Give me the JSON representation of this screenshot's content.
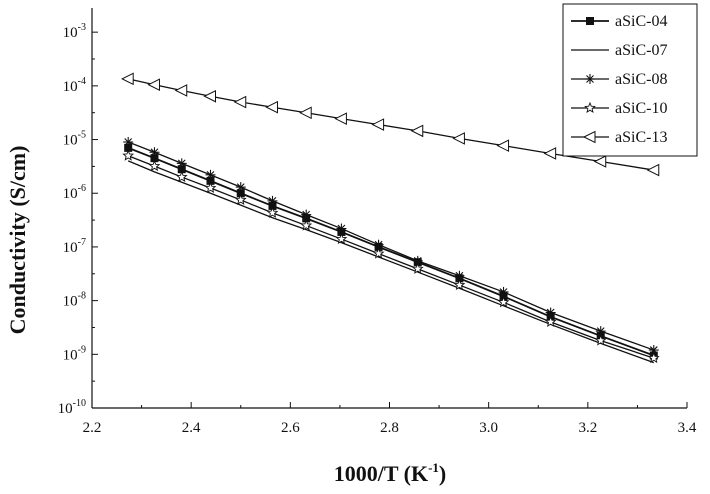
{
  "chart_data": {
    "type": "line",
    "title": "",
    "xlabel": "1000/T (K",
    "xlabel_sup": "-1",
    "xlabel_suffix": ")",
    "ylabel": "Conductivity (S/cm)",
    "xlim": [
      2.2,
      3.4
    ],
    "ylim_log10": [
      -10,
      -2.55
    ],
    "y_scale": "log",
    "grid": false,
    "legend_position": "top-right",
    "x_ticks": [
      "2.2",
      "2.4",
      "2.6",
      "2.8",
      "3.0",
      "3.2",
      "3.4"
    ],
    "y_tick_base": "10",
    "y_tick_exponents": [
      "-10",
      "-9",
      "-8",
      "-7",
      "-6",
      "-5",
      "-4",
      "-3"
    ],
    "x": [
      2.273,
      2.326,
      2.381,
      2.439,
      2.5,
      2.564,
      2.632,
      2.703,
      2.778,
      2.857,
      2.941,
      3.03,
      3.125,
      3.226,
      3.333
    ],
    "series": [
      {
        "name": "aSiC-04",
        "marker": "square",
        "values": [
          7e-06,
          4.5e-06,
          2.8e-06,
          1.7e-06,
          1e-06,
          5.8e-07,
          3.4e-07,
          1.9e-07,
          1e-07,
          5.2e-08,
          2.6e-08,
          1.2e-08,
          5e-09,
          2.2e-09,
          9.5e-10
        ]
      },
      {
        "name": "aSiC-07",
        "marker": "none",
        "values": [
          4e-06,
          2.5e-06,
          1.6e-06,
          1e-06,
          6e-07,
          3.5e-07,
          2.1e-07,
          1.2e-07,
          6.5e-08,
          3.4e-08,
          1.7e-08,
          8e-09,
          3.6e-09,
          1.6e-09,
          7e-10
        ]
      },
      {
        "name": "aSiC-08",
        "marker": "asterisk",
        "values": [
          9e-06,
          5.8e-06,
          3.6e-06,
          2.2e-06,
          1.3e-06,
          7.2e-07,
          4e-07,
          2.2e-07,
          1.1e-07,
          5.5e-08,
          2.9e-08,
          1.45e-08,
          6e-09,
          2.7e-09,
          1.2e-09
        ]
      },
      {
        "name": "aSiC-10",
        "marker": "star",
        "values": [
          5e-06,
          3.2e-06,
          2e-06,
          1.25e-06,
          7.5e-07,
          4.3e-07,
          2.5e-07,
          1.4e-07,
          7.5e-08,
          3.9e-08,
          1.95e-08,
          9.3e-09,
          4e-09,
          1.8e-09,
          8.5e-10
        ]
      },
      {
        "name": "aSiC-13",
        "marker": "triangle-left",
        "values": [
          0.000135,
          0.000105,
          8.2e-05,
          6.4e-05,
          5e-05,
          4e-05,
          3.15e-05,
          2.45e-05,
          1.9e-05,
          1.45e-05,
          1.05e-05,
          7.7e-06,
          5.5e-06,
          3.9e-06,
          2.7e-06
        ]
      }
    ]
  }
}
